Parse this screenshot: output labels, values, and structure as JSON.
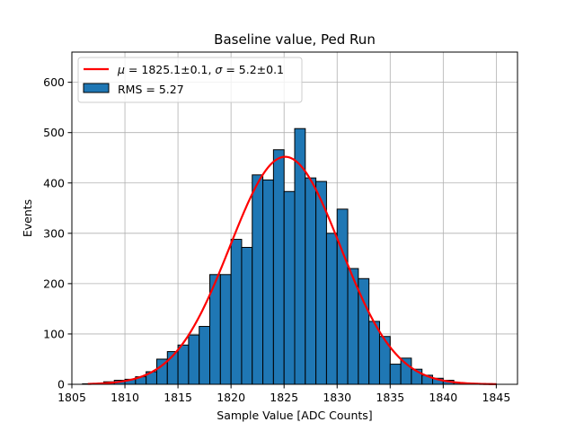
{
  "chart_data": {
    "type": "bar",
    "title": "Baseline value, Ped Run",
    "xlabel": "Sample Value [ADC Counts]",
    "ylabel": "Events",
    "xlim": [
      1805,
      1847
    ],
    "ylim": [
      0,
      660
    ],
    "xticks": [
      1805,
      1810,
      1815,
      1820,
      1825,
      1830,
      1835,
      1840,
      1845
    ],
    "yticks": [
      0,
      100,
      200,
      300,
      400,
      500,
      600
    ],
    "grid": true,
    "legend_position": "top-left",
    "bin_width": 1,
    "histogram": {
      "name": "RMS = 5.27",
      "color": "#1f77b4",
      "edge_color": "#000000",
      "bin_starts": [
        1806,
        1807,
        1808,
        1809,
        1810,
        1811,
        1812,
        1813,
        1814,
        1815,
        1816,
        1817,
        1818,
        1819,
        1820,
        1821,
        1822,
        1823,
        1824,
        1825,
        1826,
        1827,
        1828,
        1829,
        1830,
        1831,
        1832,
        1833,
        1834,
        1835,
        1836,
        1837,
        1838,
        1839,
        1840,
        1841,
        1842,
        1843,
        1844
      ],
      "values": [
        1,
        1,
        5,
        8,
        10,
        15,
        25,
        50,
        65,
        78,
        98,
        115,
        218,
        218,
        288,
        272,
        416,
        406,
        466,
        383,
        508,
        410,
        403,
        300,
        348,
        230,
        210,
        125,
        95,
        40,
        52,
        30,
        18,
        12,
        8,
        3,
        2,
        1,
        1
      ]
    },
    "fit": {
      "name": "μ = 1825.1±0.1, σ = 5.2±0.1",
      "label_parts": [
        "μ",
        " = 1825.1±0.1, ",
        "σ",
        " = 5.2±0.1"
      ],
      "color": "#ff0000",
      "mu": 1825.1,
      "sigma": 5.2,
      "amplitude": 452,
      "x_range": [
        1806.5,
        1845
      ]
    }
  }
}
